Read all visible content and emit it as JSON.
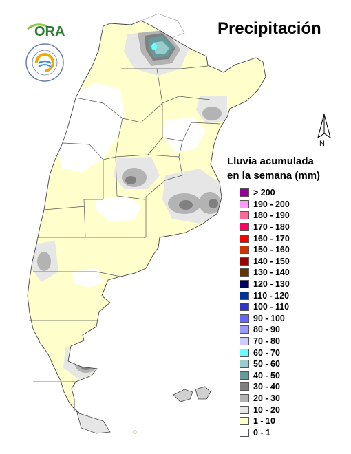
{
  "title": "Precipitación",
  "logo": {
    "text": "ORA",
    "seal_text": "INSTITUTO METEOROLÓGICO NACIONAL ARGENTINA"
  },
  "north_arrow": {
    "label": "N"
  },
  "legend": {
    "title_line1": "Lluvia acumulada",
    "title_line2": "en la semana (mm)",
    "items": [
      {
        "label": "> 200",
        "color": "#990099"
      },
      {
        "label": "190 - 200",
        "color": "#ff99ff"
      },
      {
        "label": "180 - 190",
        "color": "#ff6699"
      },
      {
        "label": "170 - 180",
        "color": "#ff0066"
      },
      {
        "label": "160 - 170",
        "color": "#ff0000"
      },
      {
        "label": "150 - 160",
        "color": "#cc3300"
      },
      {
        "label": "140 - 150",
        "color": "#990000"
      },
      {
        "label": "130 - 140",
        "color": "#663300"
      },
      {
        "label": "120 - 130",
        "color": "#000066"
      },
      {
        "label": "110 - 120",
        "color": "#003399"
      },
      {
        "label": "100 - 110",
        "color": "#3333cc"
      },
      {
        "label": "90 - 100",
        "color": "#6666ff"
      },
      {
        "label": "80 - 90",
        "color": "#9999ff"
      },
      {
        "label": "70 - 80",
        "color": "#ccccff"
      },
      {
        "label": "60 - 70",
        "color": "#66ffff"
      },
      {
        "label": "50 - 60",
        "color": "#99cccc"
      },
      {
        "label": "40 - 50",
        "color": "#669999"
      },
      {
        "label": "30 - 40",
        "color": "#808080"
      },
      {
        "label": "20 - 30",
        "color": "#b3b3b3"
      },
      {
        "label": "10 - 20",
        "color": "#e6e6e6"
      },
      {
        "label": "1 - 10",
        "color": "#ffffcc"
      },
      {
        "label": "0 - 1",
        "color": "#ffffff"
      }
    ]
  }
}
